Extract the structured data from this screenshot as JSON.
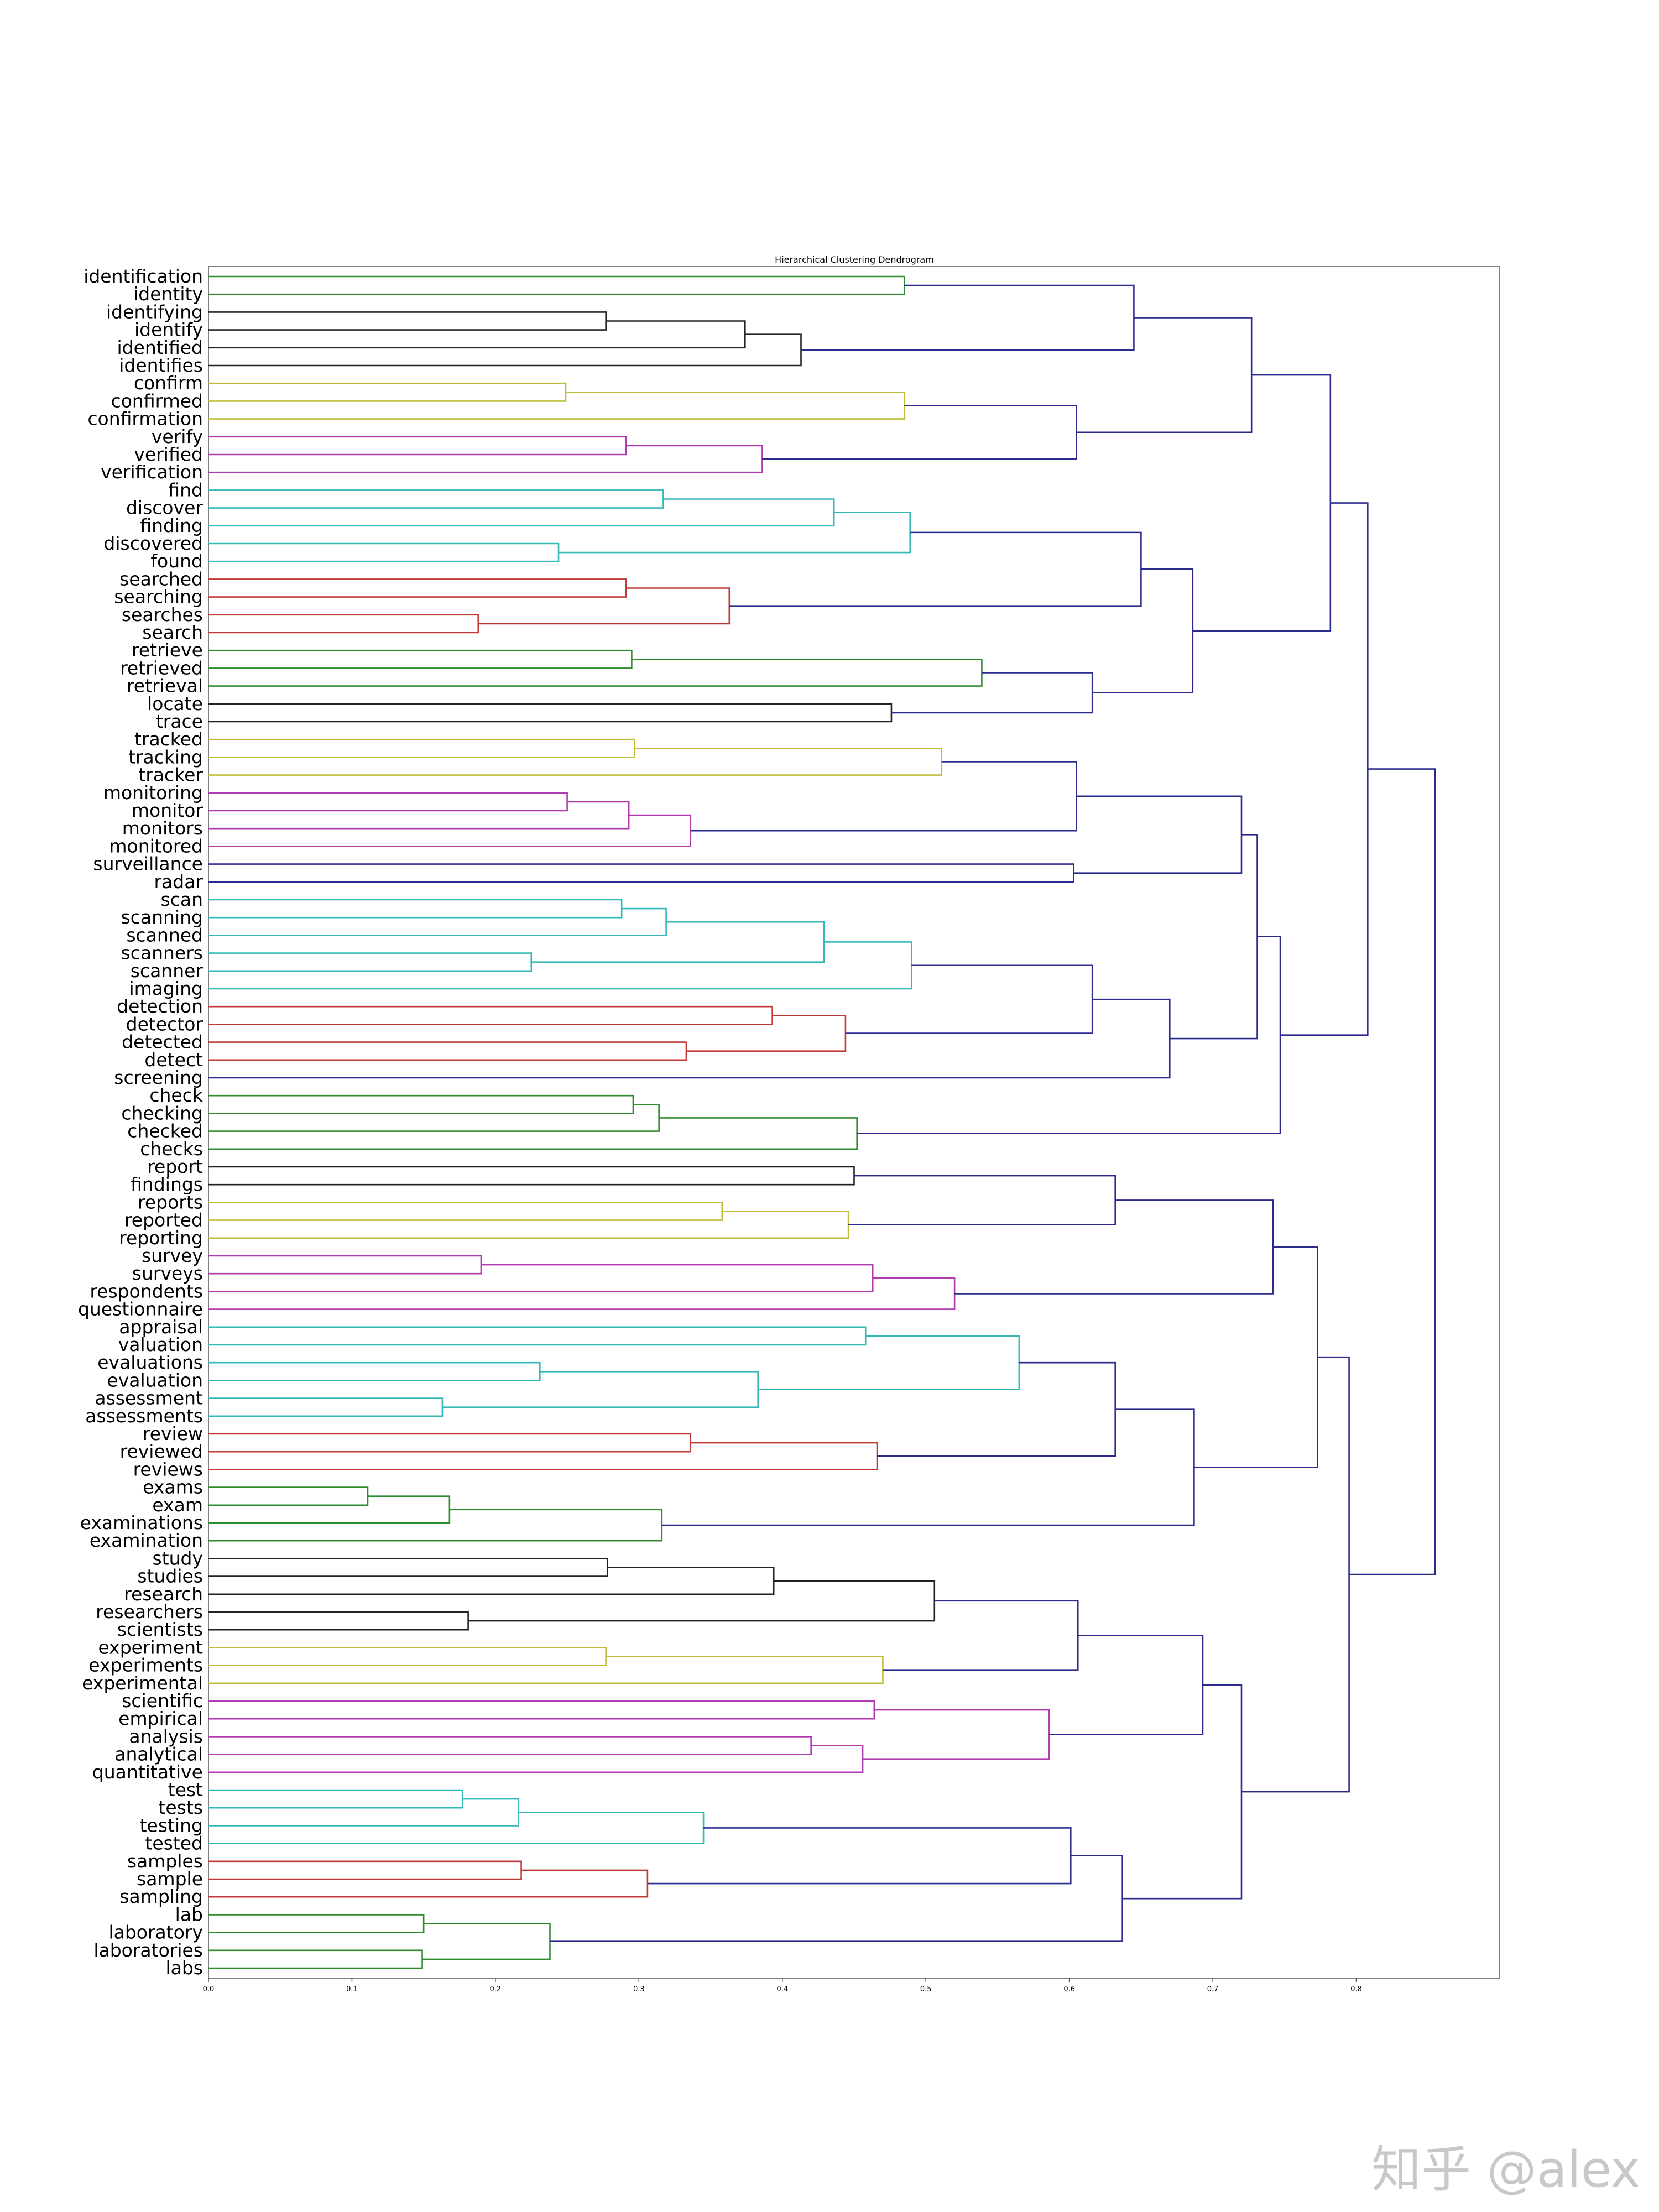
{
  "watermark": "知乎 @alex",
  "colors": {
    "green": "#2e8b2e",
    "black": "#222222",
    "olive": "#bdbd3a",
    "magenta": "#b03ab0",
    "cyan": "#35b8b8",
    "red": "#c03a3a",
    "navy": "#2b2b8f"
  },
  "chart_data": {
    "type": "dendrogram",
    "title": "Hierarchical Clustering Dendrogram",
    "orientation": "right",
    "xlim": [
      0,
      0.9
    ],
    "x_ticks": [
      "0.0",
      "0.1",
      "0.2",
      "0.3",
      "0.4",
      "0.5",
      "0.6",
      "0.7",
      "0.8"
    ],
    "leaves": [
      "identification",
      "identity",
      "identifying",
      "identify",
      "identified",
      "identifies",
      "confirm",
      "confirmed",
      "confirmation",
      "verify",
      "verified",
      "verification",
      "find",
      "discover",
      "finding",
      "discovered",
      "found",
      "searched",
      "searching",
      "searches",
      "search",
      "retrieve",
      "retrieved",
      "retrieval",
      "locate",
      "trace",
      "tracked",
      "tracking",
      "tracker",
      "monitoring",
      "monitor",
      "monitors",
      "monitored",
      "surveillance",
      "radar",
      "scan",
      "scanning",
      "scanned",
      "scanners",
      "scanner",
      "imaging",
      "detection",
      "detector",
      "detected",
      "detect",
      "screening",
      "check",
      "checking",
      "checked",
      "checks",
      "report",
      "findings",
      "reports",
      "reported",
      "reporting",
      "survey",
      "surveys",
      "respondents",
      "questionnaire",
      "appraisal",
      "valuation",
      "evaluations",
      "evaluation",
      "assessment",
      "assessments",
      "review",
      "reviewed",
      "reviews",
      "exams",
      "exam",
      "examinations",
      "examination",
      "study",
      "studies",
      "research",
      "researchers",
      "scientists",
      "experiment",
      "experiments",
      "experimental",
      "scientific",
      "empirical",
      "analysis",
      "analytical",
      "quantitative",
      "test",
      "tests",
      "testing",
      "tested",
      "samples",
      "sample",
      "sampling",
      "lab",
      "laboratory",
      "laboratories",
      "labs"
    ],
    "merges": [
      [
        "identification",
        "identity",
        0.485,
        "green"
      ],
      [
        "identifying",
        "identify",
        0.277,
        "black"
      ],
      [
        "m2",
        "identified",
        0.374,
        "black"
      ],
      [
        "m3",
        "identifies",
        0.413,
        "black"
      ],
      [
        "m1",
        "m4",
        0.645,
        "navy"
      ],
      [
        "confirm",
        "confirmed",
        0.249,
        "olive"
      ],
      [
        "m6",
        "confirmation",
        0.485,
        "olive"
      ],
      [
        "verify",
        "verified",
        0.291,
        "magenta"
      ],
      [
        "m8",
        "verification",
        0.386,
        "magenta"
      ],
      [
        "m7",
        "m9",
        0.605,
        "navy"
      ],
      [
        "m5",
        "m10",
        0.727,
        "navy"
      ],
      [
        "find",
        "discover",
        0.317,
        "cyan"
      ],
      [
        "m12",
        "finding",
        0.436,
        "cyan"
      ],
      [
        "discovered",
        "found",
        0.244,
        "cyan"
      ],
      [
        "m13",
        "m14",
        0.489,
        "cyan"
      ],
      [
        "searched",
        "searching",
        0.291,
        "red"
      ],
      [
        "searches",
        "search",
        0.188,
        "red"
      ],
      [
        "m16",
        "m17",
        0.363,
        "red"
      ],
      [
        "m15",
        "m18",
        0.65,
        "navy"
      ],
      [
        "retrieve",
        "retrieved",
        0.295,
        "green"
      ],
      [
        "m20",
        "retrieval",
        0.539,
        "green"
      ],
      [
        "locate",
        "trace",
        0.476,
        "black"
      ],
      [
        "m21",
        "m22",
        0.616,
        "navy"
      ],
      [
        "m19",
        "m23",
        0.686,
        "navy"
      ],
      [
        "m11",
        "m24",
        0.782,
        "navy"
      ],
      [
        "tracked",
        "tracking",
        0.297,
        "olive"
      ],
      [
        "m26",
        "tracker",
        0.511,
        "olive"
      ],
      [
        "monitoring",
        "monitor",
        0.25,
        "magenta"
      ],
      [
        "m28",
        "monitors",
        0.293,
        "magenta"
      ],
      [
        "m29",
        "monitored",
        0.336,
        "magenta"
      ],
      [
        "m27",
        "m30",
        0.605,
        "navy"
      ],
      [
        "surveillance",
        "radar",
        0.603,
        "navy"
      ],
      [
        "m31",
        "m32",
        0.72,
        "navy"
      ],
      [
        "scan",
        "scanning",
        0.288,
        "cyan"
      ],
      [
        "m34",
        "scanned",
        0.319,
        "cyan"
      ],
      [
        "scanners",
        "scanner",
        0.225,
        "cyan"
      ],
      [
        "m35",
        "m36",
        0.429,
        "cyan"
      ],
      [
        "m37",
        "imaging",
        0.49,
        "cyan"
      ],
      [
        "detection",
        "detector",
        0.393,
        "red"
      ],
      [
        "detected",
        "detect",
        0.333,
        "red"
      ],
      [
        "m39",
        "m40",
        0.444,
        "red"
      ],
      [
        "m38",
        "m41",
        0.616,
        "navy"
      ],
      [
        "m42",
        "screening",
        0.67,
        "navy"
      ],
      [
        "m33",
        "m43",
        0.731,
        "navy"
      ],
      [
        "check",
        "checking",
        0.296,
        "green"
      ],
      [
        "m45",
        "checked",
        0.314,
        "green"
      ],
      [
        "m46",
        "checks",
        0.452,
        "green"
      ],
      [
        "m44",
        "m47",
        0.747,
        "navy"
      ],
      [
        "m25",
        "m48",
        0.808,
        "navy"
      ],
      [
        "reports",
        "reported",
        0.358,
        "olive"
      ],
      [
        "m50",
        "reporting",
        0.446,
        "olive"
      ],
      [
        "report",
        "findings",
        0.45,
        "black"
      ],
      [
        "m52",
        "m51",
        0.632,
        "navy"
      ],
      [
        "survey",
        "surveys",
        0.19,
        "magenta"
      ],
      [
        "m54",
        "respondents",
        0.463,
        "magenta"
      ],
      [
        "m55",
        "questionnaire",
        0.52,
        "magenta"
      ],
      [
        "m53",
        "m56",
        0.742,
        "navy"
      ],
      [
        "evaluations",
        "evaluation",
        0.231,
        "cyan"
      ],
      [
        "assessment",
        "assessments",
        0.163,
        "cyan"
      ],
      [
        "m58",
        "m59",
        0.383,
        "cyan"
      ],
      [
        "appraisal",
        "valuation",
        0.458,
        "cyan"
      ],
      [
        "m61",
        "m60",
        0.565,
        "cyan"
      ],
      [
        "review",
        "reviewed",
        0.336,
        "red"
      ],
      [
        "m63",
        "reviews",
        0.466,
        "red"
      ],
      [
        "m62",
        "m64",
        0.632,
        "navy"
      ],
      [
        "exams",
        "exam",
        0.111,
        "green"
      ],
      [
        "m66",
        "examinations",
        0.168,
        "green"
      ],
      [
        "m67",
        "examination",
        0.316,
        "green"
      ],
      [
        "m65",
        "m68",
        0.687,
        "navy"
      ],
      [
        "m57",
        "m69",
        0.773,
        "navy"
      ],
      [
        "study",
        "studies",
        0.278,
        "black"
      ],
      [
        "m71",
        "research",
        0.394,
        "black"
      ],
      [
        "researchers",
        "scientists",
        0.181,
        "black"
      ],
      [
        "m72",
        "m73",
        0.506,
        "black"
      ],
      [
        "experiment",
        "experiments",
        0.277,
        "olive"
      ],
      [
        "m75",
        "experimental",
        0.47,
        "olive"
      ],
      [
        "m74",
        "m76",
        0.606,
        "navy"
      ],
      [
        "analysis",
        "analytical",
        0.42,
        "magenta"
      ],
      [
        "m78",
        "quantitative",
        0.456,
        "magenta"
      ],
      [
        "scientific",
        "empirical",
        0.464,
        "magenta"
      ],
      [
        "m80",
        "m79",
        0.586,
        "magenta"
      ],
      [
        "m77",
        "m81",
        0.693,
        "navy"
      ],
      [
        "test",
        "tests",
        0.177,
        "cyan"
      ],
      [
        "m83",
        "testing",
        0.216,
        "cyan"
      ],
      [
        "m84",
        "tested",
        0.345,
        "cyan"
      ],
      [
        "samples",
        "sample",
        0.218,
        "red"
      ],
      [
        "m86",
        "sampling",
        0.306,
        "red"
      ],
      [
        "m85",
        "m87",
        0.601,
        "navy"
      ],
      [
        "lab",
        "laboratory",
        0.15,
        "green"
      ],
      [
        "laboratories",
        "labs",
        0.149,
        "green"
      ],
      [
        "m89",
        "m90",
        0.238,
        "green"
      ],
      [
        "m88",
        "m91",
        0.637,
        "navy"
      ],
      [
        "m82",
        "m92",
        0.72,
        "navy"
      ],
      [
        "m70",
        "m93",
        0.795,
        "navy"
      ],
      [
        "m49",
        "m94",
        0.855,
        "navy"
      ]
    ]
  }
}
